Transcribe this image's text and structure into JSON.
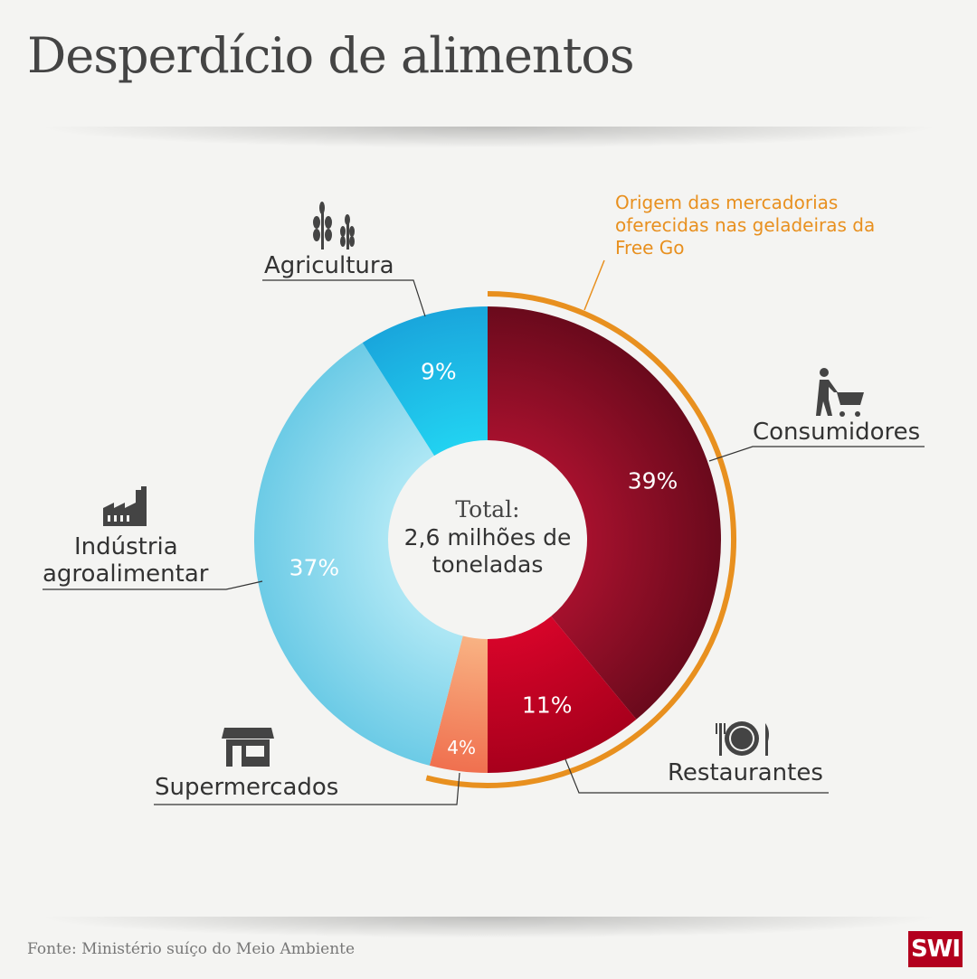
{
  "title": "Desperdício de alimentos",
  "note": "Origem das mercadorias oferecidas nas geladeiras da Free Go",
  "source": "Fonte: Ministério suíço do Meio Ambiente",
  "logo": "SWI",
  "chart_data": {
    "type": "pie",
    "title": "Desperdício de alimentos",
    "center_label": [
      "Total:",
      "2,6 milhões de",
      "toneladas"
    ],
    "categories": [
      "Consumidores",
      "Restaurantes",
      "Supermercados",
      "Indústria agroalimentar",
      "Agricultura"
    ],
    "values": [
      39,
      11,
      4,
      37,
      9
    ],
    "value_labels": [
      "39%",
      "11%",
      "4%",
      "37%",
      "9%"
    ],
    "highlight": {
      "label": "Origem das mercadorias oferecidas nas geladeiras da Free Go",
      "categories": [
        "Consumidores",
        "Restaurantes",
        "Supermercados"
      ],
      "color": "#e8901f"
    },
    "colors": [
      "#7a0d22",
      "#b8001f",
      "#f27f5a",
      "#7dd1ea",
      "#1aaade"
    ]
  },
  "labels": {
    "consumidores": "Consumidores",
    "restaurantes": "Restaurantes",
    "supermercados": "Supermercados",
    "industria1": "Indústria",
    "industria2": "agroalimentar",
    "agricultura": "Agricultura"
  },
  "icons": {
    "agricultura": "wheat-icon",
    "consumidores": "shopping-cart-icon",
    "restaurantes": "plate-cutlery-icon",
    "supermercados": "store-icon",
    "industria": "factory-icon"
  }
}
